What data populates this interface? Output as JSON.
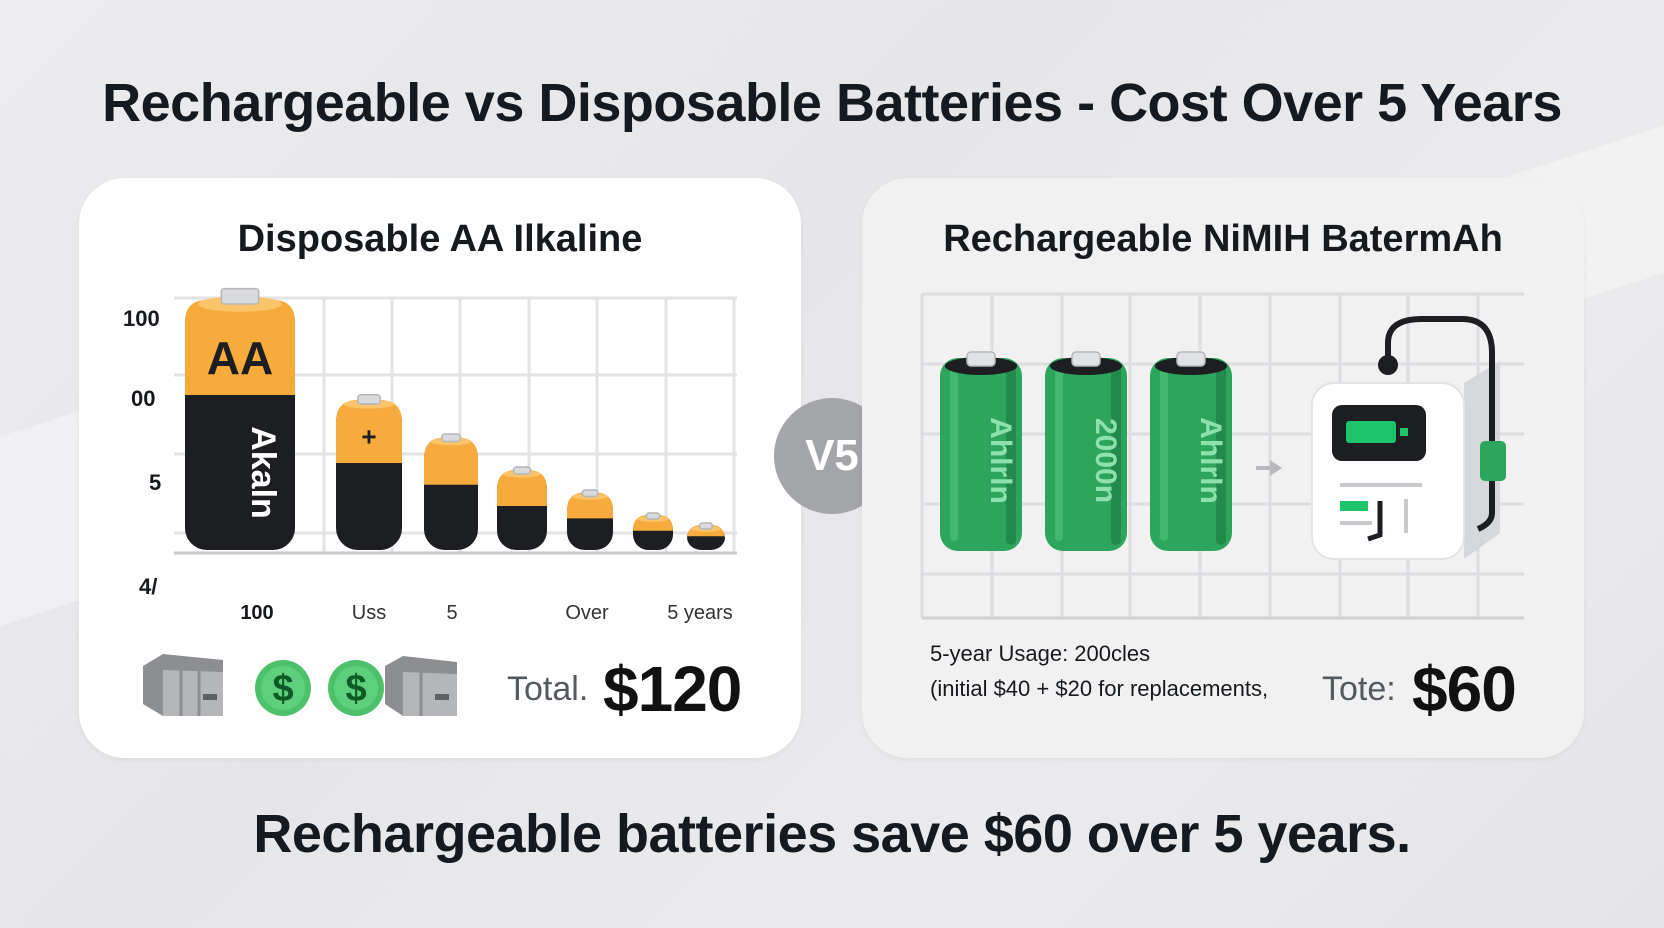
{
  "title": "Rechargeable vs Disposable Batteries - Cost Over 5 Years",
  "vs_label": "V5",
  "footer": "Rechargeable batteries save $60 over 5 years.",
  "colors": {
    "alkaline_orange": "#f6ab3c",
    "battery_black": "#1c1e22",
    "nimh_green": "#2ea55c",
    "money_green": "#4cc06a",
    "charger_screen": "#1ec46a"
  },
  "disposable": {
    "title": "Disposable AA Ilkaline",
    "y_ticks": [
      "100",
      "00",
      "5",
      "4/"
    ],
    "x_ticks": [
      "100",
      "Uss",
      "5",
      "Over",
      "5 years"
    ],
    "battery_big_label": "AA",
    "battery_big_text": "Akaln",
    "battery_plus": "+",
    "battery_levels": [
      1.0,
      0.6,
      0.45,
      0.32,
      0.23,
      0.14,
      0.1
    ],
    "icons": [
      "cash-stack-icon",
      "dollar-coin-icon",
      "dollar-coin-icon",
      "cash-stack-icon"
    ],
    "dollar_symbol": "$",
    "total_label": "Total.",
    "total_value": "$120"
  },
  "rechargeable": {
    "title": "Rechargeable NiMIH BatermAh",
    "cells": [
      "Ahlrln",
      "2000n",
      "Ahlrln"
    ],
    "usage_line1": "5-year Usage: 200cles",
    "usage_line2": "(initial $40 + $20 for replacements,",
    "total_label": "Tote:",
    "total_value": "$60"
  }
}
